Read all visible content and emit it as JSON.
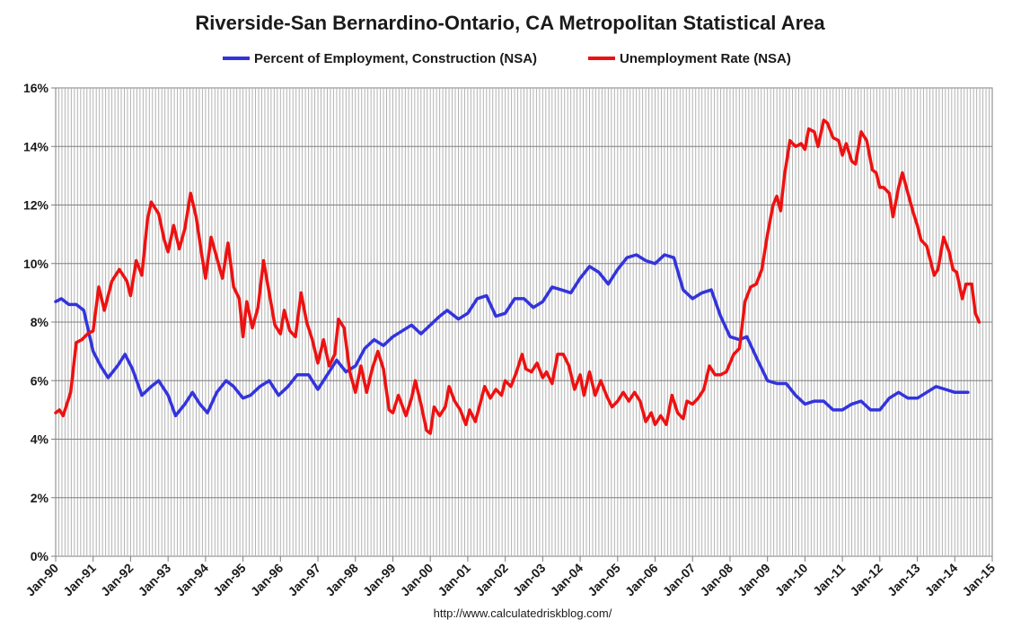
{
  "chart_data": {
    "type": "line",
    "title": "Riverside-San Bernardino-Ontario, CA Metropolitan Statistical Area",
    "source": "http://www.calculatedriskblog.com/",
    "xlabel": "",
    "ylabel": "",
    "xlim": [
      1990.0,
      2015.0
    ],
    "ylim": [
      0,
      16
    ],
    "grid": true,
    "legend_position": "top-center",
    "y_ticks": [
      0,
      2,
      4,
      6,
      8,
      10,
      12,
      14,
      16
    ],
    "y_tick_labels": [
      "0%",
      "2%",
      "4%",
      "6%",
      "8%",
      "10%",
      "12%",
      "14%",
      "16%"
    ],
    "x_ticks": [
      1990,
      1991,
      1992,
      1993,
      1994,
      1995,
      1996,
      1997,
      1998,
      1999,
      2000,
      2001,
      2002,
      2003,
      2004,
      2005,
      2006,
      2007,
      2008,
      2009,
      2010,
      2011,
      2012,
      2013,
      2014,
      2015
    ],
    "x_tick_labels": [
      "Jan-90",
      "Jan-91",
      "Jan-92",
      "Jan-93",
      "Jan-94",
      "Jan-95",
      "Jan-96",
      "Jan-97",
      "Jan-98",
      "Jan-99",
      "Jan-00",
      "Jan-01",
      "Jan-02",
      "Jan-03",
      "Jan-04",
      "Jan-05",
      "Jan-06",
      "Jan-07",
      "Jan-08",
      "Jan-09",
      "Jan-10",
      "Jan-11",
      "Jan-12",
      "Jan-13",
      "Jan-14",
      "Jan-15"
    ],
    "series": [
      {
        "name": "Percent of Employment, Construction (NSA)",
        "color": "#3333dd",
        "points": [
          [
            1990.0,
            8.7
          ],
          [
            1990.15,
            8.8
          ],
          [
            1990.35,
            8.6
          ],
          [
            1990.55,
            8.6
          ],
          [
            1990.75,
            8.4
          ],
          [
            1991.0,
            7.0
          ],
          [
            1991.2,
            6.5
          ],
          [
            1991.4,
            6.1
          ],
          [
            1991.65,
            6.5
          ],
          [
            1991.85,
            6.9
          ],
          [
            1992.05,
            6.4
          ],
          [
            1992.3,
            5.5
          ],
          [
            1992.55,
            5.8
          ],
          [
            1992.75,
            6.0
          ],
          [
            1993.0,
            5.5
          ],
          [
            1993.2,
            4.8
          ],
          [
            1993.45,
            5.2
          ],
          [
            1993.65,
            5.6
          ],
          [
            1993.85,
            5.2
          ],
          [
            1994.05,
            4.9
          ],
          [
            1994.3,
            5.6
          ],
          [
            1994.55,
            6.0
          ],
          [
            1994.75,
            5.8
          ],
          [
            1995.0,
            5.4
          ],
          [
            1995.2,
            5.5
          ],
          [
            1995.45,
            5.8
          ],
          [
            1995.7,
            6.0
          ],
          [
            1995.95,
            5.5
          ],
          [
            1996.2,
            5.8
          ],
          [
            1996.45,
            6.2
          ],
          [
            1996.75,
            6.2
          ],
          [
            1997.0,
            5.7
          ],
          [
            1997.25,
            6.2
          ],
          [
            1997.5,
            6.7
          ],
          [
            1997.75,
            6.3
          ],
          [
            1998.0,
            6.5
          ],
          [
            1998.25,
            7.1
          ],
          [
            1998.5,
            7.4
          ],
          [
            1998.75,
            7.2
          ],
          [
            1999.0,
            7.5
          ],
          [
            1999.25,
            7.7
          ],
          [
            1999.5,
            7.9
          ],
          [
            1999.75,
            7.6
          ],
          [
            2000.0,
            7.9
          ],
          [
            2000.25,
            8.2
          ],
          [
            2000.45,
            8.4
          ],
          [
            2000.75,
            8.1
          ],
          [
            2001.0,
            8.3
          ],
          [
            2001.25,
            8.8
          ],
          [
            2001.5,
            8.9
          ],
          [
            2001.75,
            8.2
          ],
          [
            2002.0,
            8.3
          ],
          [
            2002.25,
            8.8
          ],
          [
            2002.5,
            8.8
          ],
          [
            2002.75,
            8.5
          ],
          [
            2003.0,
            8.7
          ],
          [
            2003.25,
            9.2
          ],
          [
            2003.5,
            9.1
          ],
          [
            2003.75,
            9.0
          ],
          [
            2004.0,
            9.5
          ],
          [
            2004.25,
            9.9
          ],
          [
            2004.5,
            9.7
          ],
          [
            2004.75,
            9.3
          ],
          [
            2005.0,
            9.8
          ],
          [
            2005.25,
            10.2
          ],
          [
            2005.5,
            10.3
          ],
          [
            2005.75,
            10.1
          ],
          [
            2006.0,
            10.0
          ],
          [
            2006.25,
            10.3
          ],
          [
            2006.5,
            10.2
          ],
          [
            2006.75,
            9.1
          ],
          [
            2007.0,
            8.8
          ],
          [
            2007.25,
            9.0
          ],
          [
            2007.5,
            9.1
          ],
          [
            2007.75,
            8.2
          ],
          [
            2008.0,
            7.5
          ],
          [
            2008.25,
            7.4
          ],
          [
            2008.45,
            7.5
          ],
          [
            2008.7,
            6.8
          ],
          [
            2009.0,
            6.0
          ],
          [
            2009.25,
            5.9
          ],
          [
            2009.5,
            5.9
          ],
          [
            2009.75,
            5.5
          ],
          [
            2010.0,
            5.2
          ],
          [
            2010.25,
            5.3
          ],
          [
            2010.5,
            5.3
          ],
          [
            2010.75,
            5.0
          ],
          [
            2011.0,
            5.0
          ],
          [
            2011.25,
            5.2
          ],
          [
            2011.5,
            5.3
          ],
          [
            2011.75,
            5.0
          ],
          [
            2012.0,
            5.0
          ],
          [
            2012.25,
            5.4
          ],
          [
            2012.5,
            5.6
          ],
          [
            2012.75,
            5.4
          ],
          [
            2013.0,
            5.4
          ],
          [
            2013.25,
            5.6
          ],
          [
            2013.5,
            5.8
          ],
          [
            2013.75,
            5.7
          ],
          [
            2014.0,
            5.6
          ],
          [
            2014.2,
            5.6
          ],
          [
            2014.35,
            5.6
          ]
        ]
      },
      {
        "name": "Unemployment Rate (NSA)",
        "color": "#ee1111",
        "points": [
          [
            1990.0,
            4.9
          ],
          [
            1990.1,
            5.0
          ],
          [
            1990.2,
            4.8
          ],
          [
            1990.4,
            5.6
          ],
          [
            1990.55,
            7.3
          ],
          [
            1990.7,
            7.4
          ],
          [
            1990.85,
            7.6
          ],
          [
            1991.0,
            7.7
          ],
          [
            1991.15,
            9.2
          ],
          [
            1991.3,
            8.4
          ],
          [
            1991.5,
            9.4
          ],
          [
            1991.7,
            9.8
          ],
          [
            1991.9,
            9.4
          ],
          [
            1992.0,
            8.9
          ],
          [
            1992.15,
            10.1
          ],
          [
            1992.3,
            9.6
          ],
          [
            1992.45,
            11.5
          ],
          [
            1992.55,
            12.1
          ],
          [
            1992.75,
            11.7
          ],
          [
            1992.9,
            10.8
          ],
          [
            1993.0,
            10.4
          ],
          [
            1993.15,
            11.3
          ],
          [
            1993.3,
            10.5
          ],
          [
            1993.45,
            11.2
          ],
          [
            1993.6,
            12.4
          ],
          [
            1993.75,
            11.6
          ],
          [
            1993.9,
            10.3
          ],
          [
            1994.0,
            9.5
          ],
          [
            1994.15,
            10.9
          ],
          [
            1994.3,
            10.2
          ],
          [
            1994.45,
            9.5
          ],
          [
            1994.6,
            10.7
          ],
          [
            1994.75,
            9.2
          ],
          [
            1994.9,
            8.8
          ],
          [
            1995.0,
            7.5
          ],
          [
            1995.1,
            8.7
          ],
          [
            1995.25,
            7.8
          ],
          [
            1995.4,
            8.5
          ],
          [
            1995.55,
            10.1
          ],
          [
            1995.7,
            9.0
          ],
          [
            1995.85,
            7.9
          ],
          [
            1996.0,
            7.6
          ],
          [
            1996.1,
            8.4
          ],
          [
            1996.25,
            7.7
          ],
          [
            1996.4,
            7.5
          ],
          [
            1996.55,
            9.0
          ],
          [
            1996.7,
            8.0
          ],
          [
            1996.85,
            7.4
          ],
          [
            1997.0,
            6.6
          ],
          [
            1997.15,
            7.4
          ],
          [
            1997.3,
            6.5
          ],
          [
            1997.45,
            6.9
          ],
          [
            1997.55,
            8.1
          ],
          [
            1997.7,
            7.8
          ],
          [
            1997.85,
            6.3
          ],
          [
            1998.0,
            5.6
          ],
          [
            1998.15,
            6.5
          ],
          [
            1998.3,
            5.6
          ],
          [
            1998.45,
            6.4
          ],
          [
            1998.6,
            7.0
          ],
          [
            1998.75,
            6.4
          ],
          [
            1998.9,
            5.0
          ],
          [
            1999.0,
            4.9
          ],
          [
            1999.15,
            5.5
          ],
          [
            1999.35,
            4.8
          ],
          [
            1999.5,
            5.4
          ],
          [
            1999.6,
            6.0
          ],
          [
            1999.75,
            5.2
          ],
          [
            1999.9,
            4.3
          ],
          [
            2000.0,
            4.2
          ],
          [
            2000.1,
            5.1
          ],
          [
            2000.25,
            4.8
          ],
          [
            2000.4,
            5.1
          ],
          [
            2000.5,
            5.8
          ],
          [
            2000.65,
            5.3
          ],
          [
            2000.8,
            5.0
          ],
          [
            2000.95,
            4.5
          ],
          [
            2001.05,
            5.0
          ],
          [
            2001.2,
            4.6
          ],
          [
            2001.35,
            5.3
          ],
          [
            2001.45,
            5.8
          ],
          [
            2001.6,
            5.4
          ],
          [
            2001.75,
            5.7
          ],
          [
            2001.9,
            5.5
          ],
          [
            2002.0,
            6.0
          ],
          [
            2002.15,
            5.8
          ],
          [
            2002.3,
            6.3
          ],
          [
            2002.45,
            6.9
          ],
          [
            2002.55,
            6.4
          ],
          [
            2002.7,
            6.3
          ],
          [
            2002.85,
            6.6
          ],
          [
            2003.0,
            6.1
          ],
          [
            2003.1,
            6.3
          ],
          [
            2003.25,
            5.9
          ],
          [
            2003.4,
            6.9
          ],
          [
            2003.55,
            6.9
          ],
          [
            2003.7,
            6.5
          ],
          [
            2003.85,
            5.7
          ],
          [
            2004.0,
            6.2
          ],
          [
            2004.1,
            5.5
          ],
          [
            2004.25,
            6.3
          ],
          [
            2004.4,
            5.5
          ],
          [
            2004.55,
            6.0
          ],
          [
            2004.7,
            5.5
          ],
          [
            2004.85,
            5.1
          ],
          [
            2005.0,
            5.3
          ],
          [
            2005.15,
            5.6
          ],
          [
            2005.3,
            5.3
          ],
          [
            2005.45,
            5.6
          ],
          [
            2005.6,
            5.3
          ],
          [
            2005.75,
            4.6
          ],
          [
            2005.9,
            4.9
          ],
          [
            2006.0,
            4.5
          ],
          [
            2006.15,
            4.8
          ],
          [
            2006.3,
            4.5
          ],
          [
            2006.45,
            5.5
          ],
          [
            2006.6,
            4.9
          ],
          [
            2006.75,
            4.7
          ],
          [
            2006.85,
            5.3
          ],
          [
            2007.0,
            5.2
          ],
          [
            2007.15,
            5.4
          ],
          [
            2007.3,
            5.7
          ],
          [
            2007.45,
            6.5
          ],
          [
            2007.6,
            6.2
          ],
          [
            2007.75,
            6.2
          ],
          [
            2007.9,
            6.3
          ],
          [
            2008.0,
            6.6
          ],
          [
            2008.1,
            6.9
          ],
          [
            2008.25,
            7.1
          ],
          [
            2008.4,
            8.7
          ],
          [
            2008.55,
            9.2
          ],
          [
            2008.7,
            9.3
          ],
          [
            2008.85,
            9.8
          ],
          [
            2009.0,
            11.0
          ],
          [
            2009.15,
            12.0
          ],
          [
            2009.25,
            12.3
          ],
          [
            2009.35,
            11.8
          ],
          [
            2009.45,
            13.0
          ],
          [
            2009.6,
            14.2
          ],
          [
            2009.75,
            14.0
          ],
          [
            2009.9,
            14.1
          ],
          [
            2010.0,
            13.9
          ],
          [
            2010.1,
            14.6
          ],
          [
            2010.25,
            14.5
          ],
          [
            2010.35,
            14.0
          ],
          [
            2010.5,
            14.9
          ],
          [
            2010.6,
            14.8
          ],
          [
            2010.75,
            14.3
          ],
          [
            2010.9,
            14.2
          ],
          [
            2011.0,
            13.7
          ],
          [
            2011.1,
            14.1
          ],
          [
            2011.25,
            13.5
          ],
          [
            2011.35,
            13.4
          ],
          [
            2011.5,
            14.5
          ],
          [
            2011.65,
            14.2
          ],
          [
            2011.8,
            13.2
          ],
          [
            2011.9,
            13.1
          ],
          [
            2012.0,
            12.6
          ],
          [
            2012.1,
            12.6
          ],
          [
            2012.25,
            12.4
          ],
          [
            2012.35,
            11.6
          ],
          [
            2012.5,
            12.6
          ],
          [
            2012.6,
            13.1
          ],
          [
            2012.75,
            12.4
          ],
          [
            2012.9,
            11.7
          ],
          [
            2013.0,
            11.3
          ],
          [
            2013.1,
            10.8
          ],
          [
            2013.25,
            10.6
          ],
          [
            2013.35,
            10.1
          ],
          [
            2013.45,
            9.6
          ],
          [
            2013.55,
            9.8
          ],
          [
            2013.7,
            10.9
          ],
          [
            2013.85,
            10.4
          ],
          [
            2013.95,
            9.8
          ],
          [
            2014.05,
            9.7
          ],
          [
            2014.2,
            8.8
          ],
          [
            2014.3,
            9.3
          ],
          [
            2014.45,
            9.3
          ],
          [
            2014.55,
            8.3
          ],
          [
            2014.65,
            8.0
          ]
        ]
      }
    ]
  }
}
